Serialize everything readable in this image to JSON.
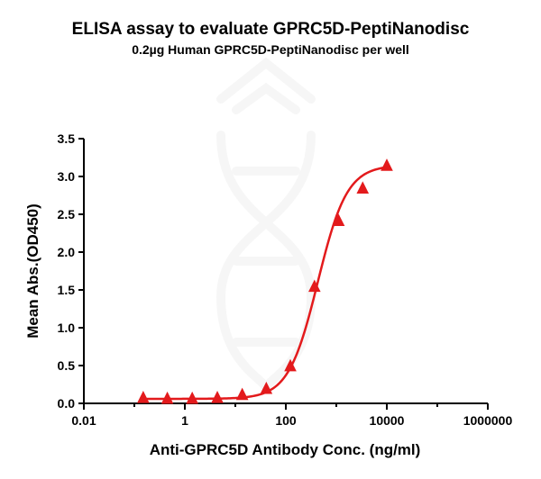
{
  "chart_data": {
    "type": "scatter",
    "title": "ELISA assay to evaluate GPRC5D-PeptiNanodisc",
    "subtitle": "0.2µg Human GPRC5D-PeptiNanodisc per well",
    "xlabel": "Anti-GPRC5D Antibody Conc. (ng/ml)",
    "ylabel": "Mean Abs.(OD450)",
    "xscale": "log",
    "xlim": [
      0.01,
      1000000
    ],
    "ylim": [
      0,
      3.5
    ],
    "xticks": [
      {
        "value": 0.01,
        "label": "0.01"
      },
      {
        "value": 1,
        "label": "1"
      },
      {
        "value": 100,
        "label": "100"
      },
      {
        "value": 10000,
        "label": "10000"
      },
      {
        "value": 1000000,
        "label": "1000000"
      }
    ],
    "yticks": [
      {
        "value": 0.0,
        "label": "0.0"
      },
      {
        "value": 0.5,
        "label": "0.5"
      },
      {
        "value": 1.0,
        "label": "1.0"
      },
      {
        "value": 1.5,
        "label": "1.5"
      },
      {
        "value": 2.0,
        "label": "2.0"
      },
      {
        "value": 2.5,
        "label": "2.5"
      },
      {
        "value": 3.0,
        "label": "3.0"
      },
      {
        "value": 3.5,
        "label": "3.5"
      }
    ],
    "grid": false,
    "marker": "triangle",
    "color": "#e31a1c",
    "points": {
      "x": [
        0.15,
        0.45,
        1.4,
        4.4,
        13.7,
        41,
        123,
        370,
        1110,
        3330,
        10000
      ],
      "y": [
        0.07,
        0.06,
        0.06,
        0.07,
        0.11,
        0.19,
        0.49,
        1.54,
        2.41,
        2.84,
        3.14
      ]
    },
    "fit_curve": {
      "model": "4PL",
      "bottom": 0.06,
      "top": 3.15,
      "ec50": 430,
      "hill": 1.5,
      "x_range": [
        0.15,
        10000
      ]
    }
  }
}
